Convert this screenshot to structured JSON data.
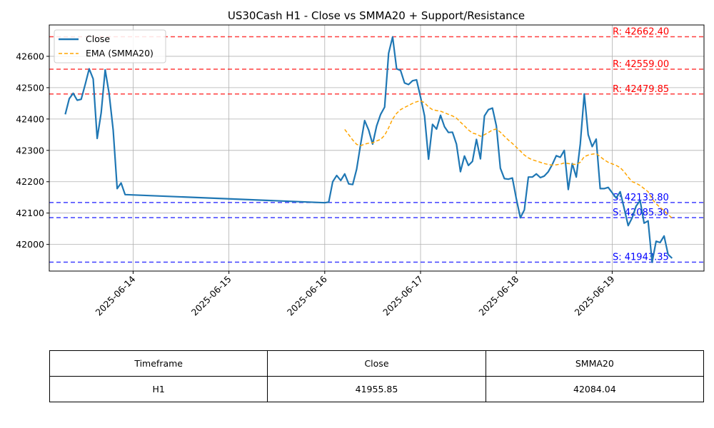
{
  "chart_data": {
    "type": "line",
    "title": "US30Cash H1 - Close vs SMMA20 + Support/Resistance",
    "x_ticks": [
      "2025-06-14",
      "2025-06-15",
      "2025-06-16",
      "2025-06-17",
      "2025-06-18",
      "2025-06-19"
    ],
    "y_ticks": [
      "42000",
      "42100",
      "42200",
      "42300",
      "42400",
      "42500",
      "42600"
    ],
    "ylim": [
      41915,
      42700
    ],
    "xlim": [
      "2025-06-13 03:00",
      "2025-06-19 23:00"
    ],
    "grid": true,
    "legend_position": "upper-left",
    "series": [
      {
        "name": "Close",
        "color": "#1f77b4",
        "style": "solid",
        "points": [
          [
            "2025-06-13 07:00",
            42415
          ],
          [
            "2025-06-13 08:00",
            42465
          ],
          [
            "2025-06-13 09:00",
            42482
          ],
          [
            "2025-06-13 10:00",
            42460
          ],
          [
            "2025-06-13 11:00",
            42463
          ],
          [
            "2025-06-13 12:00",
            42510
          ],
          [
            "2025-06-13 13:00",
            42560
          ],
          [
            "2025-06-13 14:00",
            42528
          ],
          [
            "2025-06-13 15:00",
            42338
          ],
          [
            "2025-06-13 16:00",
            42420
          ],
          [
            "2025-06-13 17:00",
            42557
          ],
          [
            "2025-06-13 18:00",
            42480
          ],
          [
            "2025-06-13 19:00",
            42365
          ],
          [
            "2025-06-13 20:00",
            42178
          ],
          [
            "2025-06-13 21:00",
            42196
          ],
          [
            "2025-06-13 22:00",
            42159
          ],
          [
            "2025-06-16 00:00",
            42133
          ],
          [
            "2025-06-16 01:00",
            42135
          ],
          [
            "2025-06-16 02:00",
            42200
          ],
          [
            "2025-06-16 03:00",
            42220
          ],
          [
            "2025-06-16 04:00",
            42204
          ],
          [
            "2025-06-16 05:00",
            42225
          ],
          [
            "2025-06-16 06:00",
            42193
          ],
          [
            "2025-06-16 07:00",
            42191
          ],
          [
            "2025-06-16 08:00",
            42240
          ],
          [
            "2025-06-16 09:00",
            42320
          ],
          [
            "2025-06-16 10:00",
            42395
          ],
          [
            "2025-06-16 11:00",
            42365
          ],
          [
            "2025-06-16 12:00",
            42320
          ],
          [
            "2025-06-16 13:00",
            42378
          ],
          [
            "2025-06-16 14:00",
            42415
          ],
          [
            "2025-06-16 15:00",
            42438
          ],
          [
            "2025-06-16 16:00",
            42610
          ],
          [
            "2025-06-16 17:00",
            42662
          ],
          [
            "2025-06-16 18:00",
            42560
          ],
          [
            "2025-06-16 19:00",
            42555
          ],
          [
            "2025-06-16 20:00",
            42515
          ],
          [
            "2025-06-16 21:00",
            42510
          ],
          [
            "2025-06-16 22:00",
            42522
          ],
          [
            "2025-06-16 23:00",
            42525
          ],
          [
            "2025-06-17 00:00",
            42470
          ],
          [
            "2025-06-17 01:00",
            42410
          ],
          [
            "2025-06-17 02:00",
            42272
          ],
          [
            "2025-06-17 03:00",
            42383
          ],
          [
            "2025-06-17 04:00",
            42368
          ],
          [
            "2025-06-17 05:00",
            42412
          ],
          [
            "2025-06-17 06:00",
            42375
          ],
          [
            "2025-06-17 07:00",
            42357
          ],
          [
            "2025-06-17 08:00",
            42358
          ],
          [
            "2025-06-17 09:00",
            42320
          ],
          [
            "2025-06-17 10:00",
            42232
          ],
          [
            "2025-06-17 11:00",
            42282
          ],
          [
            "2025-06-17 12:00",
            42252
          ],
          [
            "2025-06-17 13:00",
            42265
          ],
          [
            "2025-06-17 14:00",
            42335
          ],
          [
            "2025-06-17 15:00",
            42273
          ],
          [
            "2025-06-17 16:00",
            42410
          ],
          [
            "2025-06-17 17:00",
            42430
          ],
          [
            "2025-06-17 18:00",
            42435
          ],
          [
            "2025-06-17 19:00",
            42378
          ],
          [
            "2025-06-17 20:00",
            42243
          ],
          [
            "2025-06-17 21:00",
            42210
          ],
          [
            "2025-06-17 22:00",
            42208
          ],
          [
            "2025-06-17 23:00",
            42212
          ],
          [
            "2025-06-18 00:00",
            42145
          ],
          [
            "2025-06-18 01:00",
            42085
          ],
          [
            "2025-06-18 02:00",
            42110
          ],
          [
            "2025-06-18 03:00",
            42215
          ],
          [
            "2025-06-18 04:00",
            42215
          ],
          [
            "2025-06-18 05:00",
            42225
          ],
          [
            "2025-06-18 06:00",
            42213
          ],
          [
            "2025-06-18 07:00",
            42218
          ],
          [
            "2025-06-18 08:00",
            42232
          ],
          [
            "2025-06-18 09:00",
            42255
          ],
          [
            "2025-06-18 10:00",
            42283
          ],
          [
            "2025-06-18 11:00",
            42278
          ],
          [
            "2025-06-18 12:00",
            42300
          ],
          [
            "2025-06-18 13:00",
            42175
          ],
          [
            "2025-06-18 14:00",
            42258
          ],
          [
            "2025-06-18 15:00",
            42215
          ],
          [
            "2025-06-18 16:00",
            42320
          ],
          [
            "2025-06-18 17:00",
            42480
          ],
          [
            "2025-06-18 18:00",
            42350
          ],
          [
            "2025-06-18 19:00",
            42312
          ],
          [
            "2025-06-18 20:00",
            42336
          ],
          [
            "2025-06-18 21:00",
            42178
          ],
          [
            "2025-06-18 22:00",
            42178
          ],
          [
            "2025-06-18 23:00",
            42182
          ],
          [
            "2025-06-19 01:00",
            42148
          ],
          [
            "2025-06-19 02:00",
            42168
          ],
          [
            "2025-06-19 03:00",
            42115
          ],
          [
            "2025-06-19 04:00",
            42060
          ],
          [
            "2025-06-19 05:00",
            42085
          ],
          [
            "2025-06-19 06:00",
            42122
          ],
          [
            "2025-06-19 07:00",
            42140
          ],
          [
            "2025-06-19 08:00",
            42068
          ],
          [
            "2025-06-19 09:00",
            42075
          ],
          [
            "2025-06-19 10:00",
            41943
          ],
          [
            "2025-06-19 11:00",
            42010
          ],
          [
            "2025-06-19 12:00",
            42006
          ],
          [
            "2025-06-19 13:00",
            42027
          ],
          [
            "2025-06-19 14:00",
            41968
          ],
          [
            "2025-06-19 15:00",
            41956
          ]
        ]
      },
      {
        "name": "EMA (SMMA20)",
        "color": "#ffa500",
        "style": "dashed",
        "points": [
          [
            "2025-06-16 05:00",
            42367
          ],
          [
            "2025-06-16 06:00",
            42350
          ],
          [
            "2025-06-16 07:00",
            42333
          ],
          [
            "2025-06-16 08:00",
            42319
          ],
          [
            "2025-06-16 09:00",
            42315
          ],
          [
            "2025-06-16 10:00",
            42320
          ],
          [
            "2025-06-16 11:00",
            42323
          ],
          [
            "2025-06-16 12:00",
            42324
          ],
          [
            "2025-06-16 13:00",
            42330
          ],
          [
            "2025-06-16 14:00",
            42335
          ],
          [
            "2025-06-16 15:00",
            42348
          ],
          [
            "2025-06-16 16:00",
            42372
          ],
          [
            "2025-06-16 17:00",
            42400
          ],
          [
            "2025-06-16 18:00",
            42418
          ],
          [
            "2025-06-16 19:00",
            42430
          ],
          [
            "2025-06-16 20:00",
            42437
          ],
          [
            "2025-06-16 21:00",
            42443
          ],
          [
            "2025-06-16 22:00",
            42450
          ],
          [
            "2025-06-16 23:00",
            42455
          ],
          [
            "2025-06-17 00:00",
            42458
          ],
          [
            "2025-06-17 01:00",
            42452
          ],
          [
            "2025-06-17 02:00",
            42438
          ],
          [
            "2025-06-17 03:00",
            42430
          ],
          [
            "2025-06-17 04:00",
            42427
          ],
          [
            "2025-06-17 05:00",
            42425
          ],
          [
            "2025-06-17 06:00",
            42420
          ],
          [
            "2025-06-17 07:00",
            42415
          ],
          [
            "2025-06-17 08:00",
            42410
          ],
          [
            "2025-06-17 09:00",
            42403
          ],
          [
            "2025-06-17 10:00",
            42390
          ],
          [
            "2025-06-17 11:00",
            42378
          ],
          [
            "2025-06-17 12:00",
            42365
          ],
          [
            "2025-06-17 13:00",
            42355
          ],
          [
            "2025-06-17 14:00",
            42352
          ],
          [
            "2025-06-17 15:00",
            42345
          ],
          [
            "2025-06-17 16:00",
            42350
          ],
          [
            "2025-06-17 17:00",
            42357
          ],
          [
            "2025-06-17 18:00",
            42365
          ],
          [
            "2025-06-17 19:00",
            42368
          ],
          [
            "2025-06-17 20:00",
            42358
          ],
          [
            "2025-06-17 21:00",
            42345
          ],
          [
            "2025-06-17 22:00",
            42333
          ],
          [
            "2025-06-17 23:00",
            42322
          ],
          [
            "2025-06-18 00:00",
            42310
          ],
          [
            "2025-06-18 01:00",
            42298
          ],
          [
            "2025-06-18 02:00",
            42285
          ],
          [
            "2025-06-18 03:00",
            42276
          ],
          [
            "2025-06-18 04:00",
            42270
          ],
          [
            "2025-06-18 05:00",
            42266
          ],
          [
            "2025-06-18 06:00",
            42262
          ],
          [
            "2025-06-18 07:00",
            42258
          ],
          [
            "2025-06-18 08:00",
            42255
          ],
          [
            "2025-06-18 09:00",
            42253
          ],
          [
            "2025-06-18 10:00",
            42254
          ],
          [
            "2025-06-18 11:00",
            42256
          ],
          [
            "2025-06-18 12:00",
            42260
          ],
          [
            "2025-06-18 13:00",
            42258
          ],
          [
            "2025-06-18 14:00",
            42256
          ],
          [
            "2025-06-18 15:00",
            42255
          ],
          [
            "2025-06-18 16:00",
            42262
          ],
          [
            "2025-06-18 17:00",
            42280
          ],
          [
            "2025-06-18 18:00",
            42285
          ],
          [
            "2025-06-18 19:00",
            42288
          ],
          [
            "2025-06-18 20:00",
            42290
          ],
          [
            "2025-06-18 21:00",
            42280
          ],
          [
            "2025-06-18 22:00",
            42270
          ],
          [
            "2025-06-18 23:00",
            42262
          ],
          [
            "2025-06-19 01:00",
            42252
          ],
          [
            "2025-06-19 02:00",
            42245
          ],
          [
            "2025-06-19 03:00",
            42232
          ],
          [
            "2025-06-19 04:00",
            42215
          ],
          [
            "2025-06-19 05:00",
            42200
          ],
          [
            "2025-06-19 06:00",
            42195
          ],
          [
            "2025-06-19 07:00",
            42188
          ],
          [
            "2025-06-19 08:00",
            42178
          ],
          [
            "2025-06-19 09:00",
            42168
          ],
          [
            "2025-06-19 10:00",
            42145
          ],
          [
            "2025-06-19 11:00",
            42130
          ],
          [
            "2025-06-19 12:00",
            42118
          ],
          [
            "2025-06-19 13:00",
            42108
          ],
          [
            "2025-06-19 14:00",
            42095
          ],
          [
            "2025-06-19 15:00",
            42084
          ]
        ]
      }
    ],
    "levels": [
      {
        "label": "R: 42662.40",
        "value": 42662.4,
        "color": "#ff0000",
        "kind": "resistance"
      },
      {
        "label": "R: 42559.00",
        "value": 42559.0,
        "color": "#ff0000",
        "kind": "resistance"
      },
      {
        "label": "R: 42479.85",
        "value": 42479.85,
        "color": "#ff0000",
        "kind": "resistance"
      },
      {
        "label": "S: 42133.80",
        "value": 42133.8,
        "color": "#0000ff",
        "kind": "support"
      },
      {
        "label": "S: 42085.30",
        "value": 42085.3,
        "color": "#0000ff",
        "kind": "support"
      },
      {
        "label": "S: 41943.35",
        "value": 41943.35,
        "color": "#0000ff",
        "kind": "support"
      }
    ],
    "table": {
      "headers": [
        "Timeframe",
        "Close",
        "SMMA20"
      ],
      "rows": [
        [
          "H1",
          "41955.85",
          "42084.04"
        ]
      ]
    }
  }
}
